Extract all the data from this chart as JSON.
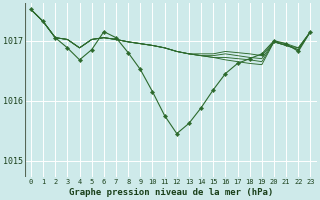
{
  "bg_color": "#ceeaea",
  "grid_color": "#ffffff",
  "line_color": "#2d6a2d",
  "ylabel_ticks": [
    1015,
    1016,
    1017
  ],
  "xlabel_ticks": [
    0,
    1,
    2,
    3,
    4,
    5,
    6,
    7,
    8,
    9,
    10,
    11,
    12,
    13,
    14,
    15,
    16,
    17,
    18,
    19,
    20,
    21,
    22,
    23
  ],
  "xlabel_label": "Graphe pression niveau de la mer (hPa)",
  "ylim": [
    1014.72,
    1017.62
  ],
  "xlim": [
    -0.5,
    23.5
  ],
  "series": [
    [
      1017.52,
      1017.32,
      1017.05,
      1017.02,
      1016.88,
      1017.02,
      1017.05,
      1017.02,
      1016.98,
      1016.95,
      1016.92,
      1016.88,
      1016.82,
      1016.78,
      1016.75,
      1016.72,
      1016.68,
      1016.65,
      1016.62,
      1016.6,
      1016.98,
      1016.92,
      1016.88,
      1017.15
    ],
    [
      1017.52,
      1017.32,
      1017.05,
      1017.02,
      1016.88,
      1017.02,
      1017.05,
      1017.02,
      1016.98,
      1016.95,
      1016.92,
      1016.88,
      1016.82,
      1016.78,
      1016.75,
      1016.72,
      1016.72,
      1016.7,
      1016.68,
      1016.65,
      1016.98,
      1016.92,
      1016.85,
      1017.15
    ],
    [
      1017.52,
      1017.32,
      1017.05,
      1017.02,
      1016.88,
      1017.02,
      1017.05,
      1017.02,
      1016.98,
      1016.95,
      1016.92,
      1016.88,
      1016.82,
      1016.78,
      1016.75,
      1016.75,
      1016.78,
      1016.75,
      1016.72,
      1016.7,
      1016.98,
      1016.92,
      1016.85,
      1017.15
    ],
    [
      1017.52,
      1017.32,
      1017.05,
      1017.02,
      1016.88,
      1017.02,
      1017.05,
      1017.02,
      1016.98,
      1016.95,
      1016.92,
      1016.88,
      1016.82,
      1016.78,
      1016.78,
      1016.78,
      1016.82,
      1016.8,
      1016.78,
      1016.75,
      1016.98,
      1016.95,
      1016.88,
      1017.15
    ]
  ],
  "main_x": [
    0,
    1,
    2,
    3,
    4,
    5,
    6,
    7,
    8,
    9,
    10,
    11,
    12,
    13,
    14,
    15,
    16,
    17,
    18,
    19,
    20,
    21,
    22,
    23
  ],
  "main_series": [
    1017.52,
    1017.32,
    1017.05,
    1016.88,
    1016.68,
    1016.85,
    1017.15,
    1017.05,
    1016.8,
    1016.52,
    1016.15,
    1015.75,
    1015.45,
    1015.62,
    1015.88,
    1016.18,
    1016.45,
    1016.62,
    1016.7,
    1016.78,
    1017.0,
    1016.95,
    1016.82,
    1017.15
  ]
}
